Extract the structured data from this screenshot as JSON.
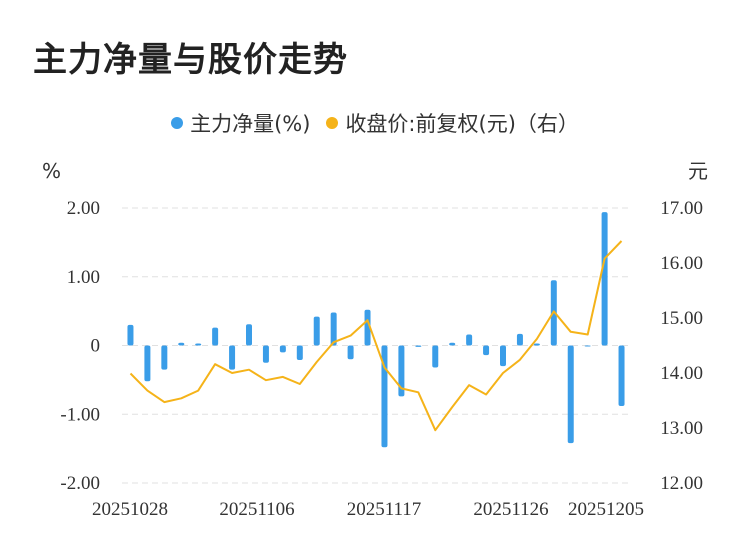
{
  "chart_data": {
    "type": "bar",
    "title": "主力净量与股价走势",
    "legend": [
      "主力净量(%)",
      "收盘价:前复权(元)（右）"
    ],
    "left_unit": "%",
    "right_unit": "元",
    "left_ticks": [
      "2.00",
      "1.00",
      "0",
      "-1.00",
      "-2.00"
    ],
    "right_ticks": [
      "17.00",
      "16.00",
      "15.00",
      "14.00",
      "13.00",
      "12.00"
    ],
    "left_ylim": [
      -2,
      2
    ],
    "right_ylim": [
      12,
      17
    ],
    "x_tick_labels": [
      "20251028",
      "20251106",
      "20251117",
      "20251126",
      "20251205"
    ],
    "x_tick_indices": [
      0,
      9,
      18,
      27,
      36
    ],
    "grid": true,
    "legend_position": "top-center",
    "colors": {
      "bar": "#3a9de8",
      "line": "#f5b319",
      "grid": "#e0e0e0",
      "title": "#222222"
    },
    "series": [
      {
        "name": "主力净量(%)",
        "type": "bar",
        "axis": "left",
        "values": [
          0.3,
          -0.52,
          -0.35,
          0.04,
          0.03,
          0.26,
          -0.35,
          0.31,
          -0.25,
          -0.1,
          -0.21,
          0.42,
          0.48,
          -0.2,
          0.52,
          -1.48,
          -0.74,
          -0.02,
          -0.32,
          0.04,
          0.16,
          -0.14,
          -0.3,
          0.17,
          0.03,
          0.95,
          -1.42,
          -0.01,
          1.94,
          -0.88
        ]
      },
      {
        "name": "收盘价:前复权(元)（右）",
        "type": "line",
        "axis": "right",
        "values": [
          13.99,
          13.68,
          13.47,
          13.54,
          13.68,
          14.16,
          14.0,
          14.06,
          13.87,
          13.93,
          13.8,
          14.2,
          14.56,
          14.68,
          14.96,
          14.1,
          13.72,
          13.65,
          12.96,
          13.38,
          13.78,
          13.61,
          14.0,
          14.24,
          14.62,
          15.12,
          14.75,
          14.7,
          16.08,
          16.4
        ]
      }
    ]
  }
}
